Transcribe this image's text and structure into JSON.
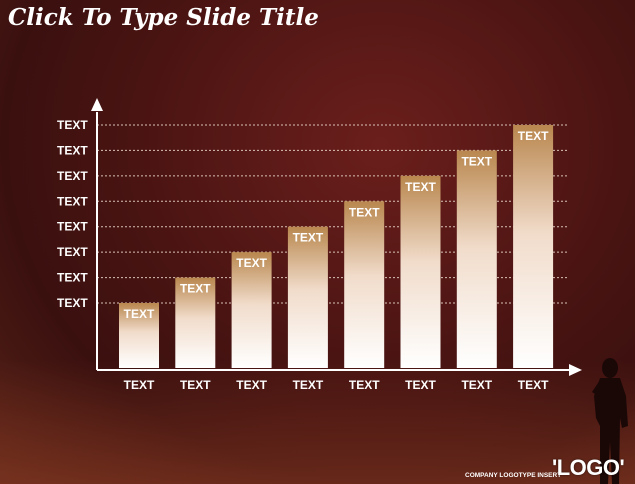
{
  "slide": {
    "title": "Click To Type Slide Title",
    "company": "COMPANY LOGOTYPE INSERT",
    "logo": "'LOGO'"
  },
  "colors": {
    "background": "#4a1412",
    "axis": "#ffffff",
    "bar_top": "#b9874e",
    "bar_bottom": "#ffffff",
    "gridline": "#d9c2b8"
  },
  "chart_data": {
    "type": "bar",
    "categories": [
      "TEXT",
      "TEXT",
      "TEXT",
      "TEXT",
      "TEXT",
      "TEXT",
      "TEXT",
      "TEXT"
    ],
    "values": [
      2,
      3,
      4,
      5,
      6,
      7,
      8,
      9
    ],
    "data_labels": [
      "TEXT",
      "TEXT",
      "TEXT",
      "TEXT",
      "TEXT",
      "TEXT",
      "TEXT",
      "TEXT"
    ],
    "y_tick_labels": [
      "TEXT",
      "TEXT",
      "TEXT",
      "TEXT",
      "TEXT",
      "TEXT",
      "TEXT",
      "TEXT"
    ],
    "y_tick_values": [
      2,
      3,
      4,
      5,
      6,
      7,
      8,
      9
    ],
    "ylim": [
      0,
      10
    ],
    "grid": true,
    "title": "",
    "xlabel": "",
    "ylabel": ""
  }
}
